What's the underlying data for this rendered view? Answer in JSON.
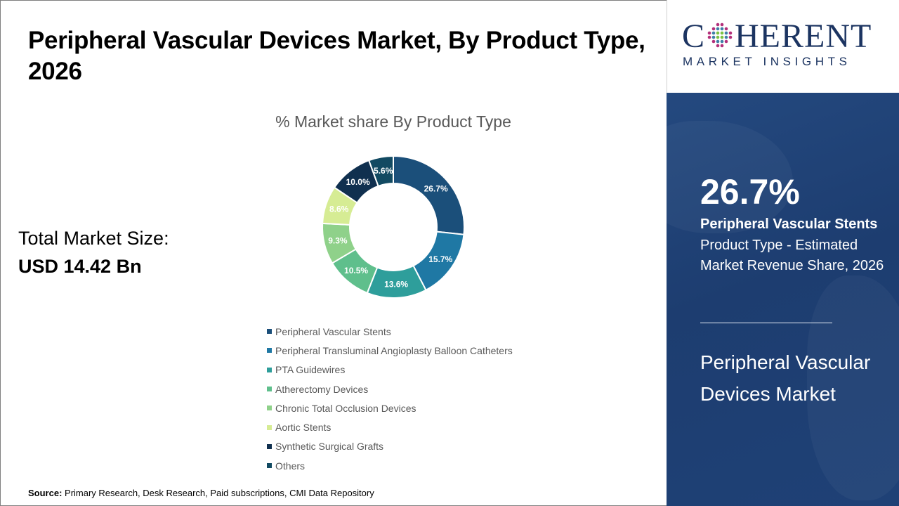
{
  "title": "Peripheral Vascular Devices Market, By Product Type, 2026",
  "chart": {
    "subtitle": "% Market share By Product Type"
  },
  "total_market": {
    "label": "Total Market Size:",
    "value": "USD 14.42 Bn"
  },
  "source": {
    "label": "Source:",
    "text": " Primary Research, Desk Research, Paid subscriptions, CMI Data Repository"
  },
  "logo": {
    "main_pre": "C",
    "main_post": "HERENT",
    "sub": "MARKET INSIGHTS",
    "icon": "globe-dots-icon"
  },
  "highlight": {
    "percent": "26.7%",
    "segment": "Peripheral Vascular Stents",
    "description": "Product Type - Estimated Market Revenue Share, 2026",
    "market_name": "Peripheral Vascular Devices Market"
  },
  "colors": {
    "panel_blue": "#1f4176",
    "logo_navy": "#1c3461"
  },
  "chart_data": {
    "type": "pie",
    "variant": "donut",
    "title": "% Market share By Product Type",
    "categories": [
      "Peripheral Vascular Stents",
      "Peripheral Transluminal Angioplasty Balloon Catheters",
      "PTA Guidewires",
      "Atherectomy Devices",
      "Chronic Total Occlusion Devices",
      "Aortic Stents",
      "Synthetic Surgical Grafts",
      "Others"
    ],
    "values": [
      26.7,
      15.7,
      13.6,
      10.5,
      9.3,
      8.6,
      10.0,
      5.6
    ],
    "labels": [
      "26.7%",
      "15.7%",
      "13.6%",
      "10.5%",
      "9.3%",
      "8.6%",
      "10.0%",
      "5.6%"
    ],
    "colors": [
      "#1b4f7a",
      "#1f78a4",
      "#2e9e9b",
      "#5fbf8c",
      "#8fd18a",
      "#d6ec94",
      "#10304f",
      "#124a62"
    ],
    "legend_position": "bottom",
    "start_angle": "12 o'clock, clockwise"
  }
}
